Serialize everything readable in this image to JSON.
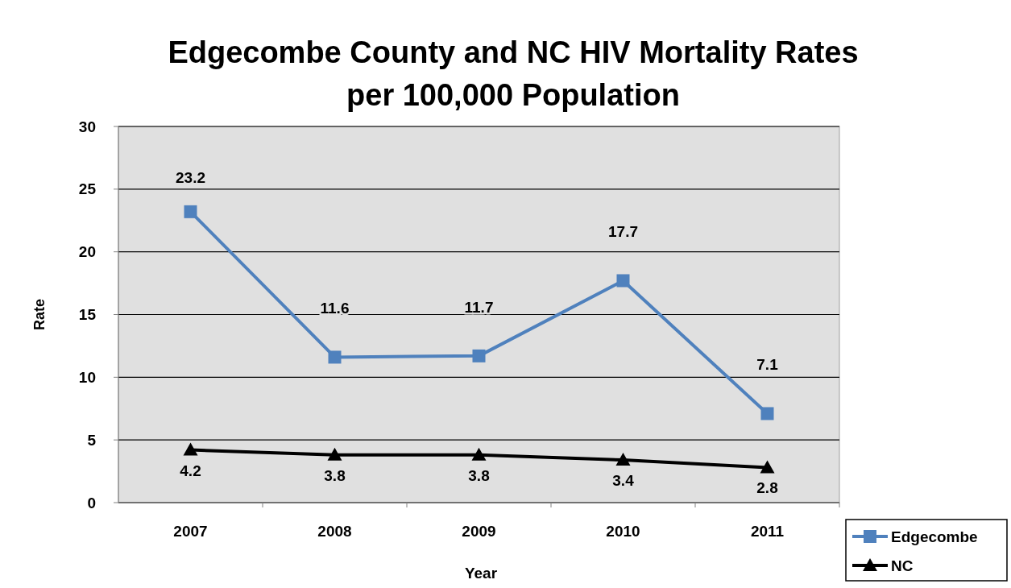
{
  "chart_data": {
    "type": "line",
    "title": "Edgecombe County and NC HIV Mortality Rates per 100,000 Population",
    "xlabel": "Year",
    "ylabel": "Rate",
    "categories": [
      "2007",
      "2008",
      "2009",
      "2010",
      "2011"
    ],
    "series": [
      {
        "name": "Edgecombe",
        "color": "#4f81bd",
        "marker": "square",
        "values": [
          23.2,
          11.6,
          11.7,
          17.7,
          7.1
        ]
      },
      {
        "name": "NC",
        "color": "#000000",
        "marker": "triangle",
        "values": [
          4.2,
          3.8,
          3.8,
          3.4,
          2.8
        ]
      }
    ],
    "ylim": [
      0,
      30
    ],
    "yticks": [
      0,
      5,
      10,
      15,
      20,
      25,
      30
    ],
    "grid": "y",
    "legend": "bottom right",
    "data_labels": true,
    "line_style": "solid"
  }
}
